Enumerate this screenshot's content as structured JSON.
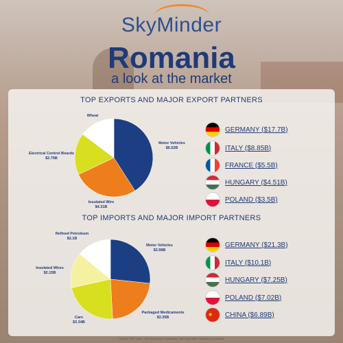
{
  "brand": "SkyMinder",
  "country": "Romania",
  "subtitle": "a look at the market",
  "exports": {
    "title": "TOP EXPORTS AND MAJOR EXPORT PARTNERS",
    "partners": [
      {
        "country": "GERMANY",
        "value": "($17.7B)",
        "flag": "germany-flag"
      },
      {
        "country": "ITALY",
        "value": "($8.85B)",
        "flag": "italy-flag"
      },
      {
        "country": "FRANCE",
        "value": "($5.5B)",
        "flag": "france-flag"
      },
      {
        "country": "HUNGARY",
        "value": "($4.51B)",
        "flag": "hungary-flag"
      },
      {
        "country": "POLAND",
        "value": "($3.5B)",
        "flag": "poland-flag"
      }
    ]
  },
  "imports": {
    "title": "TOP IMPORTS AND MAJOR IMPORT PARTNERS",
    "partners": [
      {
        "country": "GERMANY",
        "value": "($21.3B)",
        "flag": "germany-flag"
      },
      {
        "country": "ITALY",
        "value": "($10.1B)",
        "flag": "italy-flag"
      },
      {
        "country": "HUNGARY",
        "value": "($7.25B)",
        "flag": "hungary-flag"
      },
      {
        "country": "POLAND",
        "value": "($7.02B)",
        "flag": "poland-flag"
      },
      {
        "country": "CHINA",
        "value": "($6.89B)",
        "flag": "china-flag"
      }
    ]
  },
  "chart_data": [
    {
      "type": "pie",
      "title": "TOP EXPORTS AND MAJOR EXPORT PARTNERS",
      "slices": [
        {
          "label": "Motor Vehicles",
          "value_label": "$6.52B",
          "value": 6.52,
          "color": "#1b3f82"
        },
        {
          "label": "Insulated Wire",
          "value_label": "$4.31B",
          "value": 4.31,
          "color": "#ee7d1c"
        },
        {
          "label": "Electrical Control Boards",
          "value_label": "$2.75B",
          "value": 2.75,
          "color": "#d7df1f"
        },
        {
          "label": "Wheat",
          "value_label": "",
          "value": 2.35,
          "color": "#ffffff"
        }
      ]
    },
    {
      "type": "pie",
      "title": "TOP IMPORTS AND MAJOR IMPORT PARTNERS",
      "slices": [
        {
          "label": "Motor Vehicles",
          "value_label": "$3.98B",
          "value": 3.98,
          "color": "#1b3f82"
        },
        {
          "label": "Packaged Medicaments",
          "value_label": "$3.35B",
          "value": 3.35,
          "color": "#ee7d1c"
        },
        {
          "label": "Cars",
          "value_label": "$3.34B",
          "value": 3.34,
          "color": "#d7df1f"
        },
        {
          "label": "Insulated Wires",
          "value_label": "$2.15B",
          "value": 2.15,
          "color": "#f4f1a0"
        },
        {
          "label": "Refined Petroleum",
          "value_label": "$2.1B",
          "value": 2.1,
          "color": "#ffffff"
        }
      ]
    }
  ],
  "footer": "Source: 2017 data • OEC Economic Complexity; visit to go other countries for markets"
}
